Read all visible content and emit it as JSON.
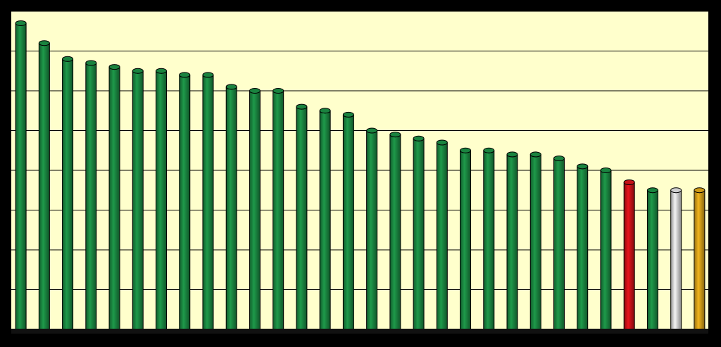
{
  "chart_data": {
    "type": "bar",
    "categories": [
      null,
      null,
      null,
      null,
      null,
      null,
      null,
      null,
      null,
      null,
      null,
      null,
      null,
      null,
      null,
      null,
      null,
      null,
      null,
      null,
      null,
      null,
      null,
      null,
      null,
      null,
      null,
      null,
      null,
      null
    ],
    "values": [
      7.7,
      7.2,
      6.8,
      6.7,
      6.6,
      6.5,
      6.5,
      6.4,
      6.4,
      6.1,
      6.0,
      6.0,
      5.6,
      5.5,
      5.4,
      5.0,
      4.9,
      4.8,
      4.7,
      4.5,
      4.5,
      4.4,
      4.4,
      4.3,
      4.1,
      4.0,
      3.7,
      3.5,
      3.5,
      3.5
    ],
    "colors": [
      "#1e9a4a",
      "#1e9a4a",
      "#1e9a4a",
      "#1e9a4a",
      "#1e9a4a",
      "#1e9a4a",
      "#1e9a4a",
      "#1e9a4a",
      "#1e9a4a",
      "#1e9a4a",
      "#1e9a4a",
      "#1e9a4a",
      "#1e9a4a",
      "#1e9a4a",
      "#1e9a4a",
      "#1e9a4a",
      "#1e9a4a",
      "#1e9a4a",
      "#1e9a4a",
      "#1e9a4a",
      "#1e9a4a",
      "#1e9a4a",
      "#1e9a4a",
      "#1e9a4a",
      "#1e9a4a",
      "#1e9a4a",
      "#e8141b",
      "#1e9a4a",
      "#f4f4f4",
      "#f2b51c"
    ],
    "ylim": [
      0,
      8
    ],
    "yticks": [
      0,
      1,
      2,
      3,
      4,
      5,
      6,
      7,
      8
    ],
    "grid": true
  }
}
